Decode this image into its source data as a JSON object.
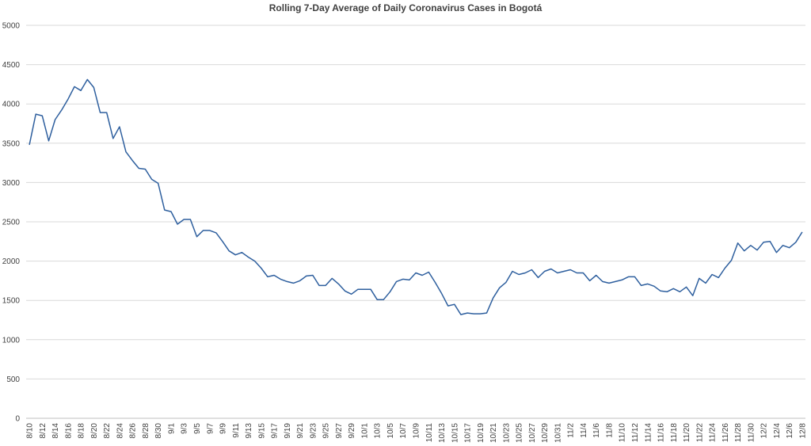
{
  "chart_data": {
    "type": "line",
    "title": "Rolling 7-Day Average of Daily Coronavirus Cases in Bogotá",
    "xlabel": "",
    "ylabel": "",
    "ylim": [
      0,
      5000
    ],
    "yticks": [
      0,
      500,
      1000,
      1500,
      2000,
      2500,
      3000,
      3500,
      4000,
      4500,
      5000
    ],
    "grid": true,
    "legend": "none",
    "line_color": "#2e5f9e",
    "x": [
      "8/10",
      "8/11",
      "8/12",
      "8/13",
      "8/14",
      "8/15",
      "8/16",
      "8/17",
      "8/18",
      "8/19",
      "8/20",
      "8/21",
      "8/22",
      "8/23",
      "8/24",
      "8/25",
      "8/26",
      "8/27",
      "8/28",
      "8/29",
      "8/30",
      "8/31",
      "9/1",
      "9/2",
      "9/3",
      "9/4",
      "9/5",
      "9/6",
      "9/7",
      "9/8",
      "9/9",
      "9/10",
      "9/11",
      "9/12",
      "9/13",
      "9/14",
      "9/15",
      "9/16",
      "9/17",
      "9/18",
      "9/19",
      "9/20",
      "9/21",
      "9/22",
      "9/23",
      "9/24",
      "9/25",
      "9/26",
      "9/27",
      "9/28",
      "9/29",
      "9/30",
      "10/1",
      "10/2",
      "10/3",
      "10/4",
      "10/5",
      "10/6",
      "10/7",
      "10/8",
      "10/9",
      "10/10",
      "10/11",
      "10/12",
      "10/13",
      "10/14",
      "10/15",
      "10/16",
      "10/17",
      "10/18",
      "10/19",
      "10/20",
      "10/21",
      "10/22",
      "10/23",
      "10/24",
      "10/25",
      "10/26",
      "10/27",
      "10/28",
      "10/29",
      "10/30",
      "10/31",
      "11/1",
      "11/2",
      "11/3",
      "11/4",
      "11/5",
      "11/6",
      "11/7",
      "11/8",
      "11/9",
      "11/10",
      "11/11",
      "11/12",
      "11/13",
      "11/14",
      "11/15",
      "11/16",
      "11/17",
      "11/18",
      "11/19",
      "11/20",
      "11/21",
      "11/22",
      "11/23",
      "11/24",
      "11/25",
      "11/26",
      "11/27",
      "11/28",
      "11/29",
      "11/30",
      "12/1",
      "12/2",
      "12/3",
      "12/4",
      "12/5",
      "12/6",
      "12/7",
      "12/8"
    ],
    "xticks": [
      "8/10",
      "8/12",
      "8/14",
      "8/16",
      "8/18",
      "8/20",
      "8/22",
      "8/24",
      "8/26",
      "8/28",
      "8/30",
      "9/1",
      "9/3",
      "9/5",
      "9/7",
      "9/9",
      "9/11",
      "9/13",
      "9/15",
      "9/17",
      "9/19",
      "9/21",
      "9/23",
      "9/25",
      "9/27",
      "9/29",
      "10/1",
      "10/3",
      "10/5",
      "10/7",
      "10/9",
      "10/11",
      "10/13",
      "10/15",
      "10/17",
      "10/19",
      "10/21",
      "10/23",
      "10/25",
      "10/27",
      "10/29",
      "10/31",
      "11/2",
      "11/4",
      "11/6",
      "11/8",
      "11/10",
      "11/12",
      "11/14",
      "11/16",
      "11/18",
      "11/20",
      "11/22",
      "11/24",
      "11/26",
      "11/28",
      "11/30",
      "12/2",
      "12/4",
      "12/6",
      "12/8"
    ],
    "values": [
      3480,
      3870,
      3850,
      3530,
      3800,
      3920,
      4060,
      4220,
      4170,
      4310,
      4210,
      3890,
      3890,
      3560,
      3710,
      3390,
      3280,
      3180,
      3170,
      3040,
      2990,
      2650,
      2630,
      2470,
      2530,
      2530,
      2310,
      2390,
      2390,
      2360,
      2250,
      2130,
      2080,
      2110,
      2050,
      2000,
      1910,
      1800,
      1820,
      1770,
      1740,
      1720,
      1750,
      1810,
      1820,
      1690,
      1690,
      1780,
      1710,
      1620,
      1580,
      1640,
      1640,
      1640,
      1510,
      1510,
      1610,
      1740,
      1770,
      1760,
      1850,
      1820,
      1860,
      1730,
      1590,
      1430,
      1450,
      1320,
      1340,
      1330,
      1330,
      1340,
      1530,
      1660,
      1730,
      1870,
      1830,
      1850,
      1890,
      1790,
      1870,
      1900,
      1850,
      1870,
      1890,
      1850,
      1850,
      1750,
      1820,
      1740,
      1720,
      1740,
      1760,
      1800,
      1800,
      1690,
      1710,
      1680,
      1620,
      1610,
      1650,
      1610,
      1670,
      1560,
      1780,
      1720,
      1830,
      1790,
      1910,
      2010,
      2230,
      2130,
      2200,
      2140,
      2240,
      2250,
      2110,
      2200,
      2170,
      2240,
      2370
    ]
  }
}
